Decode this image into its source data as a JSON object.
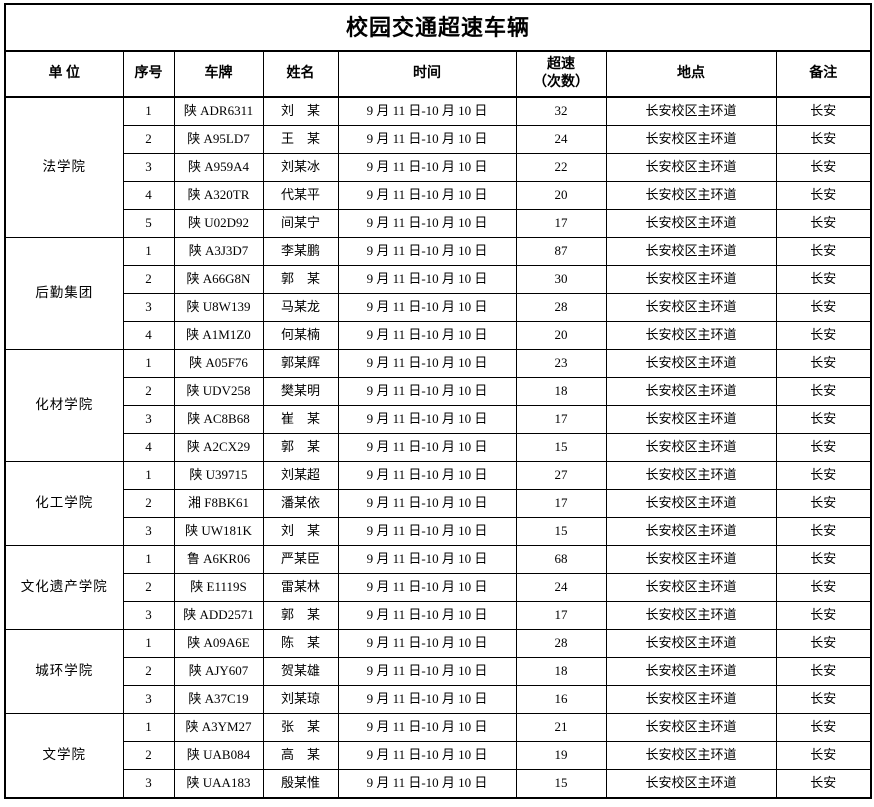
{
  "title": "校园交通超速车辆",
  "columns": {
    "unit": "单  位",
    "no": "序号",
    "plate": "车牌",
    "name": "姓名",
    "time": "时间",
    "speed_line1": "超速",
    "speed_line2": "（次数）",
    "place": "地点",
    "note": "备注"
  },
  "shared": {
    "time": "9 月 11 日-10 月 10 日",
    "place": "长安校区主环道",
    "note": "长安"
  },
  "groups": [
    {
      "unit": "法学院",
      "rows": [
        {
          "no": "1",
          "plate": "陕 ADR6311",
          "name": "刘　某",
          "count": "32"
        },
        {
          "no": "2",
          "plate": "陕 A95LD7",
          "name": "王　某",
          "count": "24"
        },
        {
          "no": "3",
          "plate": "陕 A959A4",
          "name": "刘某冰",
          "count": "22"
        },
        {
          "no": "4",
          "plate": "陕 A320TR",
          "name": "代某平",
          "count": "20"
        },
        {
          "no": "5",
          "plate": "陕 U02D92",
          "name": "间某宁",
          "count": "17"
        }
      ]
    },
    {
      "unit": "后勤集团",
      "rows": [
        {
          "no": "1",
          "plate": "陕 A3J3D7",
          "name": "李某鹏",
          "count": "87"
        },
        {
          "no": "2",
          "plate": "陕 A66G8N",
          "name": "郭　某",
          "count": "30"
        },
        {
          "no": "3",
          "plate": "陕 U8W139",
          "name": "马某龙",
          "count": "28"
        },
        {
          "no": "4",
          "plate": "陕 A1M1Z0",
          "name": "何某楠",
          "count": "20"
        }
      ]
    },
    {
      "unit": "化材学院",
      "rows": [
        {
          "no": "1",
          "plate": "陕 A05F76",
          "name": "郭某辉",
          "count": "23"
        },
        {
          "no": "2",
          "plate": "陕 UDV258",
          "name": "樊某明",
          "count": "18"
        },
        {
          "no": "3",
          "plate": "陕 AC8B68",
          "name": "崔　某",
          "count": "17"
        },
        {
          "no": "4",
          "plate": "陕 A2CX29",
          "name": "郭　某",
          "count": "15"
        }
      ]
    },
    {
      "unit": "化工学院",
      "rows": [
        {
          "no": "1",
          "plate": "陕 U39715",
          "name": "刘某超",
          "count": "27"
        },
        {
          "no": "2",
          "plate": "湘 F8BK61",
          "name": "潘某依",
          "count": "17"
        },
        {
          "no": "3",
          "plate": "陕 UW181K",
          "name": "刘　某",
          "count": "15"
        }
      ]
    },
    {
      "unit": "文化遗产学院",
      "rows": [
        {
          "no": "1",
          "plate": "鲁 A6KR06",
          "name": "严某臣",
          "count": "68"
        },
        {
          "no": "2",
          "plate": "陕 E1119S",
          "name": "雷某林",
          "count": "24"
        },
        {
          "no": "3",
          "plate": "陕 ADD2571",
          "name": "郭　某",
          "count": "17"
        }
      ]
    },
    {
      "unit": "城环学院",
      "rows": [
        {
          "no": "1",
          "plate": "陕 A09A6E",
          "name": "陈　某",
          "count": "28"
        },
        {
          "no": "2",
          "plate": "陕 AJY607",
          "name": "贺某雄",
          "count": "18"
        },
        {
          "no": "3",
          "plate": "陕 A37C19",
          "name": "刘某琼",
          "count": "16"
        }
      ]
    },
    {
      "unit": "文学院",
      "rows": [
        {
          "no": "1",
          "plate": "陕 A3YM27",
          "name": "张　某",
          "count": "21"
        },
        {
          "no": "2",
          "plate": "陕 UAB084",
          "name": "高　某",
          "count": "19"
        },
        {
          "no": "3",
          "plate": "陕 UAA183",
          "name": "殷某惟",
          "count": "15"
        }
      ]
    }
  ]
}
